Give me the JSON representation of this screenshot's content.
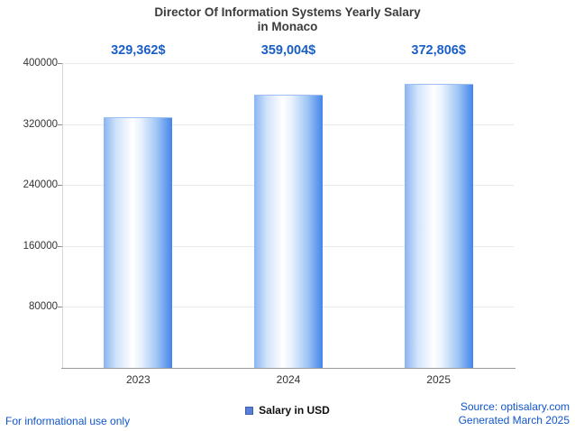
{
  "chart_data": {
    "type": "bar",
    "title": "Director Of Information Systems Yearly Salary in Monaco",
    "title_line1": "Director Of Information Systems Yearly Salary",
    "title_line2": "in Monaco",
    "categories": [
      "2023",
      "2024",
      "2025"
    ],
    "values": [
      329362,
      359004,
      372806
    ],
    "value_labels": [
      "329,362$",
      "359,004$",
      "372,806$"
    ],
    "series_name": "Salary in USD",
    "xlabel": "",
    "ylabel": "",
    "ylim": [
      0,
      400000
    ],
    "yticks": [
      80000,
      160000,
      240000,
      320000,
      400000
    ],
    "ytick_labels": [
      "80000",
      "160000",
      "240000",
      "320000",
      "400000"
    ],
    "grid": true,
    "legend_position": "bottom"
  },
  "legend": {
    "label": "Salary in USD"
  },
  "footer": {
    "disclaimer": "For informational use only",
    "source": "Source: optisalary.com",
    "generated": "Generated March 2025"
  },
  "colors": {
    "value_label_blue": "#1a5fc8",
    "link_blue": "#1155cc",
    "bar_edge_blue": "#4484ea",
    "bar_center": "#ffffff",
    "legend_swatch": "#5b7fd4",
    "title_text": "#3c3c3c",
    "axis_text": "#333333",
    "gridline": "#e9e9e9"
  }
}
